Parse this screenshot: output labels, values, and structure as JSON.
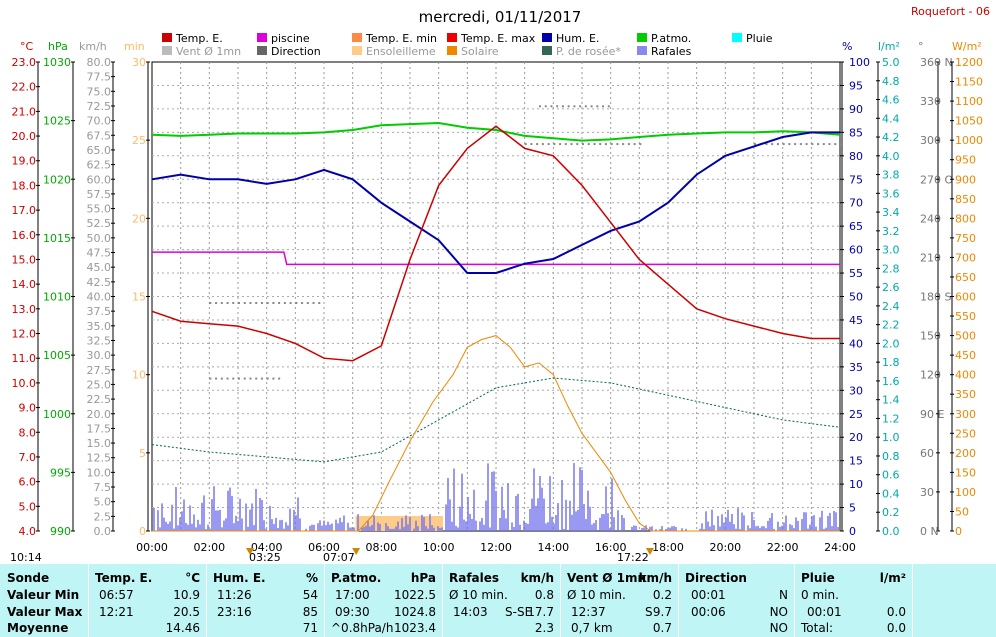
{
  "header": {
    "date": "mercredi, 01/11/2017",
    "station": "Roquefort - 06"
  },
  "colors": {
    "temp": "#cc0000",
    "piscine": "#dd00dd",
    "patm": "#00cc00",
    "hum": "#0000aa",
    "dew": "#006655",
    "solaire": "#ee8800",
    "rafales": "#7777ee",
    "vent": "#bbbbbb",
    "direction": "#888888",
    "ensol": "#ffcc88",
    "pluie": "#00cccc"
  },
  "legend": [
    {
      "label": "Temp. E.",
      "color": "#cc0000"
    },
    {
      "label": "piscine",
      "color": "#dd00dd"
    },
    {
      "label": "Temp. E. min",
      "color": "#ff8844"
    },
    {
      "label": "Temp. E. max",
      "color": "#ee0000"
    },
    {
      "label": "Hum. E.",
      "color": "#0000aa"
    },
    {
      "label": "P.atmo.",
      "color": "#00cc00"
    },
    {
      "label": "Pluie",
      "color": "#00ffff"
    },
    {
      "label": "Vent Ø 1mn",
      "color": "#bbbbbb"
    },
    {
      "label": "Direction",
      "color": "#666666"
    },
    {
      "label": "Ensoleilleme",
      "color": "#ffcc88"
    },
    {
      "label": "Solaire",
      "color": "#ee8800"
    },
    {
      "label": "P. de rosée*",
      "color": "#336655"
    },
    {
      "label": "Rafales",
      "color": "#8888ee"
    }
  ],
  "units": {
    "c": "°C",
    "hpa": "hPa",
    "kmh": "km/h",
    "min": "min",
    "pct": "%",
    "lm2": "l/m²",
    "deg": "°",
    "wm2": "W/m²"
  },
  "chart_data": {
    "type": "line",
    "x_label_times": [
      "00:00",
      "02:00",
      "04:00",
      "06:00",
      "08:00",
      "10:00",
      "12:00",
      "14:00",
      "16:00",
      "18:00",
      "20:00",
      "22:00",
      "24:00"
    ],
    "series": [
      {
        "name": "Temp. E.",
        "unit": "°C",
        "x": [
          0,
          1,
          2,
          3,
          4,
          5,
          6,
          7,
          8,
          9,
          10,
          11,
          12,
          13,
          14,
          15,
          16,
          17,
          18,
          19,
          20,
          21,
          22,
          23,
          24
        ],
        "values": [
          12.9,
          12.5,
          12.4,
          12.3,
          12.0,
          11.6,
          11.0,
          10.9,
          11.5,
          15,
          18,
          19.5,
          20.4,
          19.5,
          19.2,
          18,
          16.5,
          15,
          14,
          13,
          12.6,
          12.3,
          12.0,
          11.8,
          11.8
        ]
      },
      {
        "name": "Hum. E.",
        "unit": "%",
        "x": [
          0,
          1,
          2,
          3,
          4,
          5,
          6,
          7,
          8,
          9,
          10,
          11,
          12,
          13,
          14,
          15,
          16,
          17,
          18,
          19,
          20,
          21,
          22,
          23,
          24
        ],
        "values": [
          75,
          76,
          75,
          75,
          74,
          75,
          77,
          75,
          70,
          66,
          62,
          55,
          55,
          57,
          58,
          61,
          64,
          66,
          70,
          76,
          80,
          82,
          84,
          85,
          85
        ]
      },
      {
        "name": "P.atmo.",
        "unit": "hPa",
        "x": [
          0,
          1,
          2,
          3,
          4,
          5,
          6,
          7,
          8,
          9,
          10,
          11,
          12,
          13,
          14,
          15,
          16,
          17,
          18,
          19,
          20,
          21,
          22,
          23,
          24
        ],
        "values": [
          1023.8,
          1023.7,
          1023.8,
          1023.9,
          1023.9,
          1023.9,
          1024.0,
          1024.2,
          1024.6,
          1024.7,
          1024.8,
          1024.4,
          1024.2,
          1023.7,
          1023.5,
          1023.3,
          1023.4,
          1023.6,
          1023.8,
          1023.9,
          1024.0,
          1024.0,
          1024.1,
          1024.0,
          1023.8
        ]
      },
      {
        "name": "Solaire",
        "unit": "W/m²",
        "x": [
          0,
          7.2,
          7.7,
          8.3,
          9,
          9.8,
          10.5,
          11,
          11.5,
          12,
          12.5,
          13,
          13.5,
          14,
          14.5,
          15,
          15.5,
          16,
          16.5,
          17,
          17.4,
          24
        ],
        "values": [
          0,
          0,
          40,
          130,
          230,
          330,
          400,
          470,
          490,
          500,
          470,
          420,
          430,
          400,
          320,
          250,
          200,
          150,
          80,
          20,
          0,
          0
        ]
      },
      {
        "name": "P. de rosée*",
        "unit": "°C",
        "x": [
          0,
          2,
          4,
          6,
          8,
          10,
          12,
          14,
          16,
          18,
          20,
          22,
          24
        ],
        "values": [
          7.5,
          7.2,
          7.0,
          6.8,
          7.2,
          8.5,
          9.8,
          10.2,
          10.0,
          9.5,
          9.0,
          8.5,
          8.2
        ]
      },
      {
        "name": "piscine",
        "unit": "°C",
        "x": [
          0,
          4.6,
          4.7,
          24
        ],
        "values": [
          15.3,
          15.3,
          14.8,
          14.8
        ]
      }
    ]
  },
  "axis_labels": {
    "x": [
      "00:00",
      "02:00",
      "04:00",
      "06:00",
      "08:00",
      "10:00",
      "12:00",
      "14:00",
      "16:00",
      "18:00",
      "20:00",
      "22:00",
      "24:00"
    ],
    "temp": [
      "23.0",
      "22.0",
      "21.0",
      "20.0",
      "19.0",
      "18.0",
      "17.0",
      "16.0",
      "15.0",
      "14.0",
      "13.0",
      "12.0",
      "11.0",
      "10.0",
      "9.0",
      "8.0",
      "7.0",
      "6.0",
      "5.0",
      "4.0"
    ],
    "hpa": [
      "1030",
      "1025",
      "1020",
      "1015",
      "1010",
      "1005",
      "1000",
      "995",
      "990"
    ],
    "kmh": [
      "80.0",
      "77.5",
      "75.0",
      "72.5",
      "70.0",
      "67.5",
      "65.0",
      "62.5",
      "60.0",
      "57.5",
      "55.0",
      "52.5",
      "50.0",
      "47.5",
      "45.0",
      "42.5",
      "40.0",
      "37.5",
      "35.0",
      "32.5",
      "30.0",
      "27.5",
      "25.0",
      "22.5",
      "20.0",
      "17.5",
      "15.0",
      "12.5",
      "10.0",
      "7.5",
      "5.0",
      "2.5",
      "0.0"
    ],
    "min": [
      "30",
      "25",
      "20",
      "15",
      "10",
      "5",
      "0"
    ],
    "pct": [
      "100",
      "95",
      "90",
      "85",
      "80",
      "75",
      "70",
      "65",
      "60",
      "55",
      "50",
      "45",
      "40",
      "35",
      "30",
      "25",
      "20",
      "15",
      "10",
      "5",
      "0"
    ],
    "lm2": [
      "5.0",
      "4.8",
      "4.6",
      "4.4",
      "4.2",
      "4.0",
      "3.8",
      "3.6",
      "3.4",
      "3.2",
      "3.0",
      "2.8",
      "2.6",
      "2.4",
      "2.2",
      "2.0",
      "1.8",
      "1.6",
      "1.4",
      "1.2",
      "1.0",
      "0.8",
      "0.6",
      "0.4",
      "0.2",
      "0.0"
    ],
    "deg": [
      "360 N",
      "330",
      "300",
      "270 O",
      "240",
      "210",
      "180 S",
      "150",
      "120",
      "90 E",
      "60",
      "30",
      "0 N"
    ],
    "wm2": [
      "1200",
      "1150",
      "1100",
      "1050",
      "1000",
      "950",
      "900",
      "850",
      "800",
      "750",
      "700",
      "650",
      "600",
      "550",
      "500",
      "450",
      "400",
      "350",
      "300",
      "250",
      "200",
      "150",
      "100",
      "50",
      "0"
    ]
  },
  "markers": {
    "sunrise_left": "10:14",
    "t1": "03:25",
    "t2": "07:07",
    "t3": "17:22"
  },
  "stats": {
    "sonde": {
      "title": "Sonde",
      "rows": [
        "Valeur Min",
        "Valeur Max",
        "Moyenne"
      ]
    },
    "temp": {
      "title": "Temp. E.",
      "unit": "°C",
      "min_t": "06:57",
      "min_v": "10.9",
      "max_t": "12:21",
      "max_v": "20.5",
      "avg": "14.46"
    },
    "hum": {
      "title": "Hum. E.",
      "unit": "%",
      "min_t": "11:26",
      "min_v": "54",
      "max_t": "23:16",
      "max_v": "85",
      "avg": "71"
    },
    "patm": {
      "title": "P.atmo.",
      "unit": "hPa",
      "min_t": "17:00",
      "min_v": "1022.5",
      "max_t": "09:30",
      "max_v": "1024.8",
      "avg_l": "^0.8hPa/h",
      "avg": "1023.4"
    },
    "raf": {
      "title": "Rafales",
      "unit": "km/h",
      "min_t": "Ø 10 min.",
      "min_v": "0.8",
      "max_t": "14:03",
      "max_d": "S-SE",
      "max_v": "17.7",
      "avg": "2.3"
    },
    "vent": {
      "title": "Vent Ø 1mn",
      "unit": "km/h",
      "min_t": "Ø 10 min.",
      "min_v": "0.2",
      "max_t": "12:37",
      "max_d": "S",
      "max_v": "9.7",
      "avg_l": "0,7 km",
      "avg": "0.7"
    },
    "dir": {
      "title": "Direction",
      "min_t": "00:01",
      "min_v": "N",
      "max_t": "00:06",
      "max_v": "NO",
      "avg": "NO"
    },
    "pluie": {
      "title": "Pluie",
      "unit": "l/m²",
      "min_t": "0 min.",
      "max_t": "00:01",
      "max_v": "0.0",
      "avg_l": "Total:",
      "avg": "0.0"
    }
  }
}
